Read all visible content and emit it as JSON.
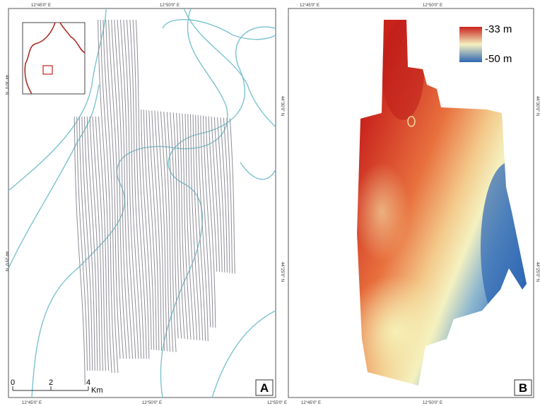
{
  "panel_a": {
    "label": "A",
    "top_lon": [
      "12°45'0\" E",
      "12°50'0\" E"
    ],
    "bottom_lon": [
      "12°45'0\" E",
      "12°50'0\" E",
      "12°55'0\" E"
    ],
    "left_lat": [
      "44°30'0\" N",
      "44°25'0\" N"
    ],
    "scale_bar": {
      "ticks": [
        "0",
        "2",
        "4"
      ],
      "unit": "Km"
    }
  },
  "panel_b": {
    "label": "B",
    "top_lon": [
      "12°45'0\" E",
      "12°50'0\" E"
    ],
    "bottom_lon": [
      "12°45'0\" E",
      "12°50'0\" E"
    ],
    "left_lat": [
      "44°30'0\" N",
      "44°25'0\" N"
    ],
    "right_lat": [
      "44°30'0\" N",
      "44°25'0\" N"
    ],
    "legend": {
      "max": "-33 m",
      "min": "-50 m"
    }
  }
}
